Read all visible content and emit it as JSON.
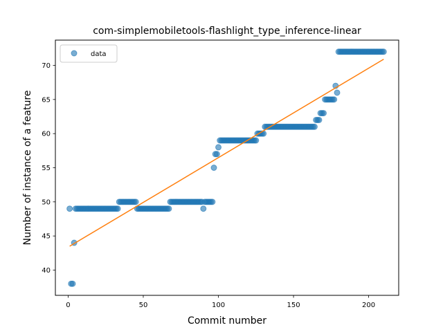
{
  "chart_data": {
    "type": "scatter",
    "title": "com-simplemobiletools-flashlight_type_inference-linear",
    "xlabel": "Commit number",
    "ylabel": "Number of instance of a feature",
    "xlim": [
      -8.5,
      220
    ],
    "ylim": [
      36.3,
      73.7
    ],
    "x_ticks": [
      0,
      50,
      100,
      150,
      200
    ],
    "y_ticks": [
      40,
      45,
      50,
      55,
      60,
      65,
      70
    ],
    "grid": false,
    "legend": {
      "position": "top-left",
      "entries": [
        "data"
      ]
    },
    "colors": {
      "points": "#1f77b4",
      "fit": "#ff7f0e"
    },
    "series": [
      {
        "name": "data",
        "kind": "scatter",
        "segments": [
          {
            "x_start": 1,
            "x_end": 1,
            "y": 49
          },
          {
            "x_start": 2,
            "x_end": 3,
            "y": 38
          },
          {
            "x_start": 4,
            "x_end": 4,
            "y": 44
          },
          {
            "x_start": 5,
            "x_end": 33,
            "y": 49
          },
          {
            "x_start": 34,
            "x_end": 45,
            "y": 50
          },
          {
            "x_start": 46,
            "x_end": 67,
            "y": 49
          },
          {
            "x_start": 68,
            "x_end": 89,
            "y": 50
          },
          {
            "x_start": 90,
            "x_end": 90,
            "y": 49
          },
          {
            "x_start": 91,
            "x_end": 96,
            "y": 50
          },
          {
            "x_start": 97,
            "x_end": 97,
            "y": 55
          },
          {
            "x_start": 98,
            "x_end": 99,
            "y": 57
          },
          {
            "x_start": 100,
            "x_end": 100,
            "y": 58
          },
          {
            "x_start": 101,
            "x_end": 125,
            "y": 59
          },
          {
            "x_start": 126,
            "x_end": 130,
            "y": 60
          },
          {
            "x_start": 131,
            "x_end": 164,
            "y": 61
          },
          {
            "x_start": 165,
            "x_end": 167,
            "y": 62
          },
          {
            "x_start": 168,
            "x_end": 170,
            "y": 63
          },
          {
            "x_start": 171,
            "x_end": 177,
            "y": 65
          },
          {
            "x_start": 178,
            "x_end": 178,
            "y": 67
          },
          {
            "x_start": 179,
            "x_end": 179,
            "y": 66
          },
          {
            "x_start": 180,
            "x_end": 210,
            "y": 72
          }
        ]
      },
      {
        "kind": "line",
        "x": [
          1,
          210
        ],
        "y": [
          43.5,
          70.9
        ]
      }
    ]
  }
}
